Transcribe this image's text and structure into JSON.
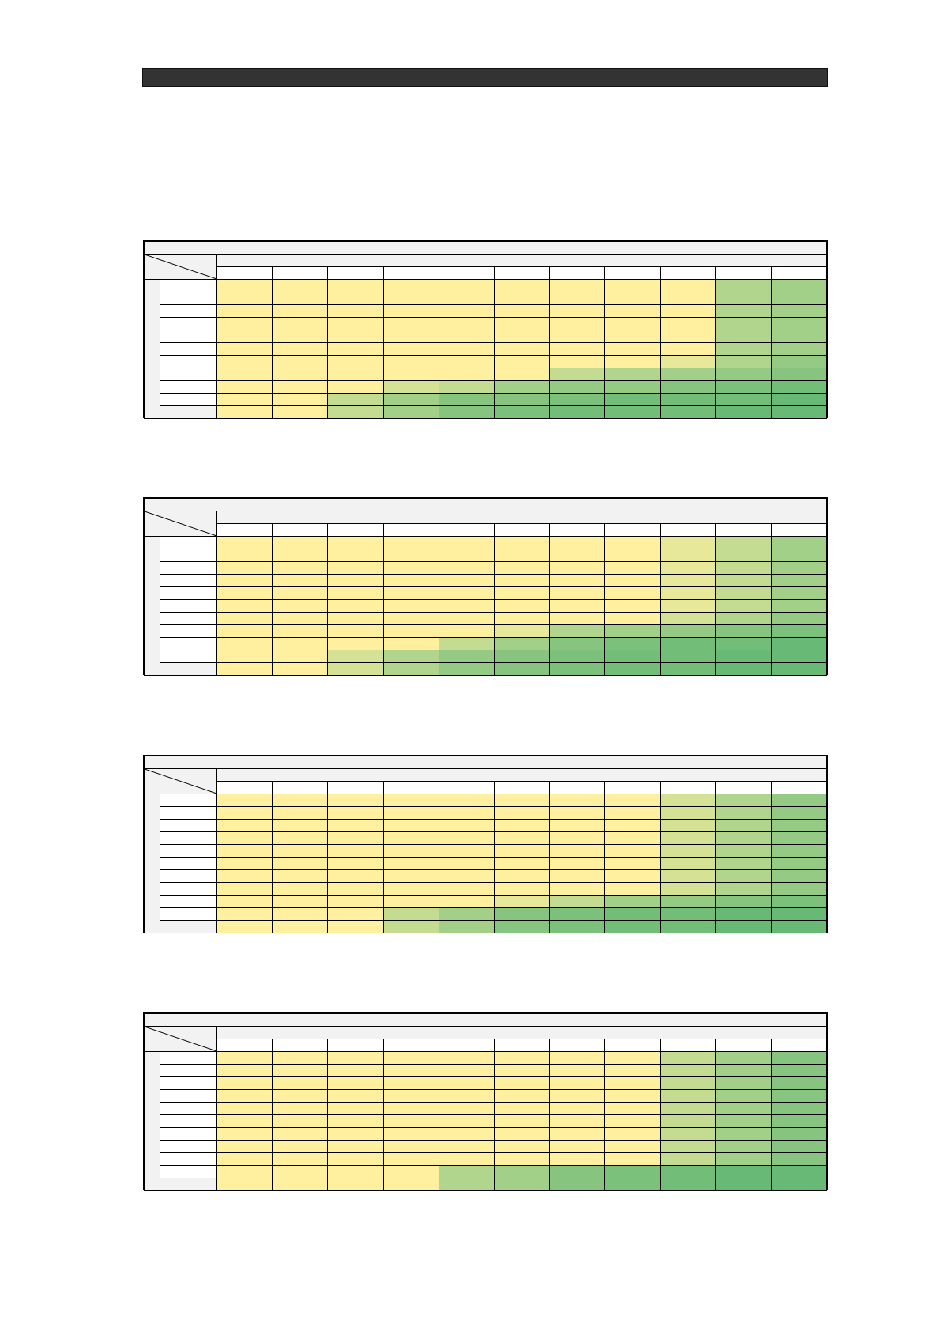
{
  "page": {
    "title": ""
  },
  "colors": {
    "header_fill": "#f2f2f2",
    "title_bar": "#333333",
    "scale": [
      "#fff0a0",
      "#e8e89a",
      "#d5e295",
      "#c4dc92",
      "#b2d58d",
      "#a3d089",
      "#95ca85",
      "#86c47f",
      "#7bc07b",
      "#72bd78",
      "#68b975"
    ]
  },
  "tables": [
    {
      "name": "table-1",
      "levels": [
        [
          0,
          0,
          0,
          0,
          0,
          0,
          0,
          0,
          0,
          4,
          5
        ],
        [
          0,
          0,
          0,
          0,
          0,
          0,
          0,
          0,
          0,
          4,
          5
        ],
        [
          0,
          0,
          0,
          0,
          0,
          0,
          0,
          0,
          0,
          4,
          5
        ],
        [
          0,
          0,
          0,
          0,
          0,
          0,
          0,
          0,
          0,
          4,
          5
        ],
        [
          0,
          0,
          0,
          0,
          0,
          0,
          0,
          0,
          0,
          4,
          5
        ],
        [
          0,
          0,
          0,
          0,
          0,
          0,
          0,
          0,
          0,
          4,
          5
        ],
        [
          0,
          0,
          0,
          0,
          0,
          0,
          0,
          0,
          1,
          4,
          6
        ],
        [
          0,
          0,
          0,
          0,
          0,
          0,
          3,
          4,
          5,
          6,
          7
        ],
        [
          0,
          0,
          0,
          2,
          3,
          5,
          6,
          6,
          7,
          8,
          9
        ],
        [
          0,
          0,
          3,
          5,
          7,
          7,
          8,
          9,
          9,
          9,
          10
        ],
        [
          0,
          0,
          3,
          5,
          7,
          8,
          9,
          9,
          9,
          10,
          10
        ]
      ]
    },
    {
      "name": "table-2",
      "levels": [
        [
          0,
          0,
          0,
          0,
          0,
          0,
          0,
          0,
          1,
          3,
          5
        ],
        [
          0,
          0,
          0,
          0,
          0,
          0,
          0,
          0,
          1,
          3,
          5
        ],
        [
          0,
          0,
          0,
          0,
          0,
          0,
          0,
          0,
          1,
          3,
          5
        ],
        [
          0,
          0,
          0,
          0,
          0,
          0,
          0,
          0,
          1,
          3,
          5
        ],
        [
          0,
          0,
          0,
          0,
          0,
          0,
          0,
          0,
          1,
          3,
          5
        ],
        [
          0,
          0,
          0,
          0,
          0,
          0,
          0,
          0,
          1,
          3,
          5
        ],
        [
          0,
          0,
          0,
          0,
          0,
          0,
          0,
          0,
          2,
          4,
          6
        ],
        [
          0,
          0,
          0,
          0,
          0,
          1,
          4,
          5,
          6,
          7,
          8
        ],
        [
          0,
          0,
          0,
          0,
          3,
          5,
          7,
          8,
          9,
          9,
          10
        ],
        [
          0,
          0,
          2,
          4,
          6,
          7,
          8,
          9,
          9,
          10,
          10
        ],
        [
          0,
          0,
          2,
          4,
          6,
          7,
          8,
          9,
          9,
          10,
          10
        ]
      ]
    },
    {
      "name": "table-3",
      "levels": [
        [
          0,
          0,
          0,
          0,
          0,
          0,
          0,
          0,
          2,
          4,
          6
        ],
        [
          0,
          0,
          0,
          0,
          0,
          0,
          0,
          0,
          2,
          4,
          6
        ],
        [
          0,
          0,
          0,
          0,
          0,
          0,
          0,
          0,
          2,
          4,
          6
        ],
        [
          0,
          0,
          0,
          0,
          0,
          0,
          0,
          0,
          2,
          4,
          6
        ],
        [
          0,
          0,
          0,
          0,
          0,
          0,
          0,
          0,
          2,
          4,
          6
        ],
        [
          0,
          0,
          0,
          0,
          0,
          0,
          0,
          0,
          2,
          4,
          6
        ],
        [
          0,
          0,
          0,
          0,
          0,
          0,
          0,
          0,
          2,
          4,
          6
        ],
        [
          0,
          0,
          0,
          0,
          0,
          0,
          0,
          0,
          2,
          4,
          6
        ],
        [
          0,
          0,
          0,
          0,
          0,
          1,
          3,
          5,
          6,
          7,
          8
        ],
        [
          0,
          0,
          0,
          3,
          5,
          7,
          8,
          9,
          9,
          10,
          10
        ],
        [
          0,
          0,
          0,
          3,
          5,
          7,
          8,
          9,
          9,
          10,
          10
        ]
      ]
    },
    {
      "name": "table-4",
      "levels": [
        [
          0,
          0,
          0,
          0,
          0,
          0,
          0,
          0,
          3,
          5,
          7
        ],
        [
          0,
          0,
          0,
          0,
          0,
          0,
          0,
          0,
          3,
          5,
          7
        ],
        [
          0,
          0,
          0,
          0,
          0,
          0,
          0,
          0,
          3,
          5,
          7
        ],
        [
          0,
          0,
          0,
          0,
          0,
          0,
          0,
          0,
          3,
          5,
          7
        ],
        [
          0,
          0,
          0,
          0,
          0,
          0,
          0,
          0,
          3,
          5,
          7
        ],
        [
          0,
          0,
          0,
          0,
          0,
          0,
          0,
          0,
          3,
          5,
          7
        ],
        [
          0,
          0,
          0,
          0,
          0,
          0,
          0,
          0,
          3,
          5,
          7
        ],
        [
          0,
          0,
          0,
          0,
          0,
          0,
          0,
          0,
          3,
          5,
          7
        ],
        [
          0,
          0,
          0,
          0,
          0,
          0,
          0,
          0,
          3,
          5,
          7
        ],
        [
          0,
          0,
          0,
          0,
          4,
          5,
          7,
          8,
          9,
          10,
          10
        ],
        [
          0,
          0,
          0,
          0,
          4,
          5,
          7,
          8,
          9,
          10,
          10
        ]
      ]
    }
  ]
}
